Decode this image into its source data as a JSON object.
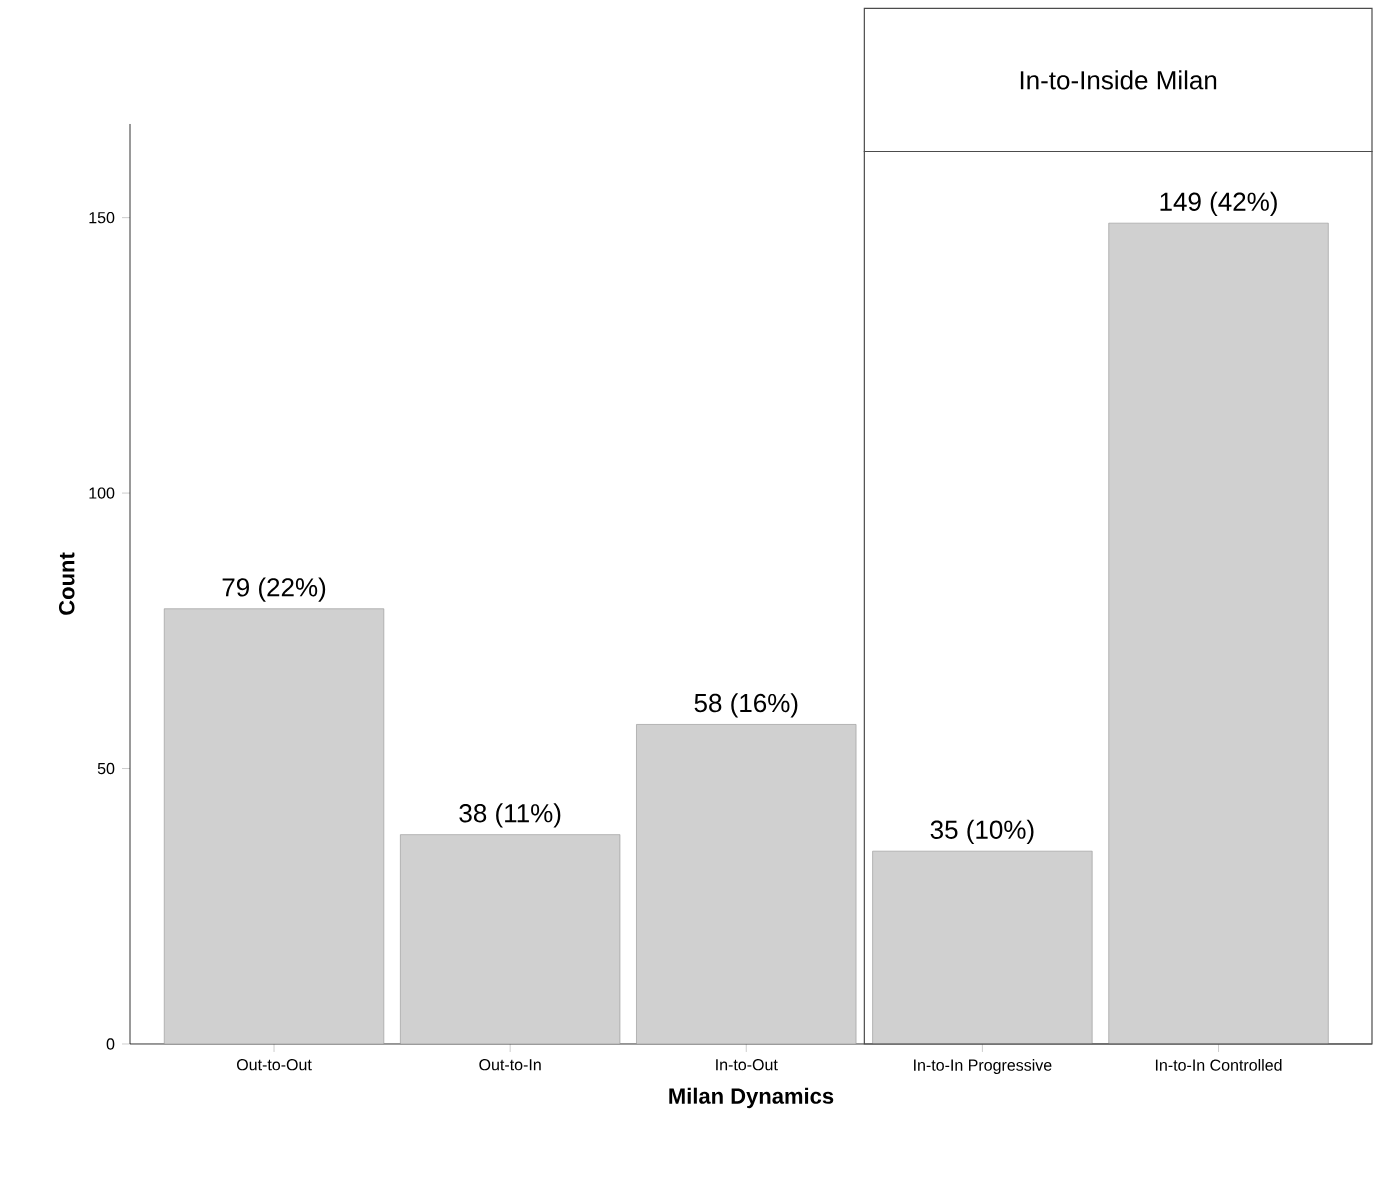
{
  "chart_data": {
    "type": "bar",
    "categories": [
      "Out-to-Out",
      "Out-to-In",
      "In-to-Out",
      "In-to-In Progressive",
      "In-to-In Controlled"
    ],
    "values": [
      79,
      38,
      58,
      35,
      149
    ],
    "value_labels": [
      "79 (22%)",
      "38 (11%)",
      "58 (16%)",
      "35 (10%)",
      "149 (42%)"
    ],
    "color": "#d0d0d0",
    "xlabel": "Milan Dynamics",
    "ylabel": "Count",
    "ylim": [
      0,
      167
    ],
    "yticks": [
      0,
      50,
      100,
      150
    ],
    "annotations": [
      "In-to-Inside Milan"
    ]
  }
}
